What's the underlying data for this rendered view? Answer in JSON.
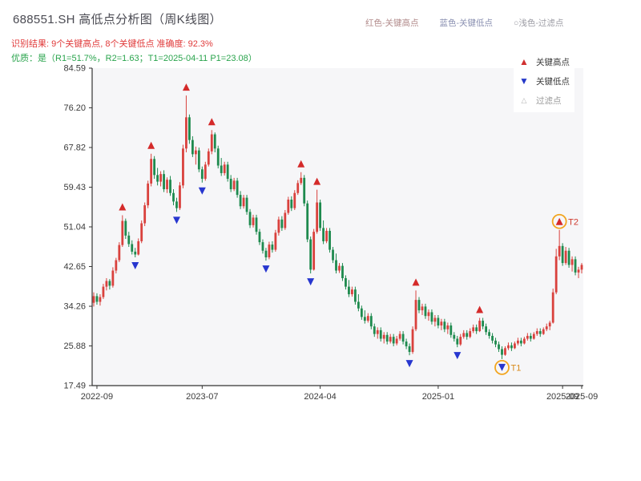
{
  "header": {
    "title": "688551.SH 高低点分析图（周K线图）",
    "legend_items": [
      {
        "label": "红色-关键高点",
        "color": "#b18a8a"
      },
      {
        "label": "蓝色-关键低点",
        "color": "#8a90b1"
      },
      {
        "label": "○浅色-过滤点",
        "color": "#9c9ca4"
      }
    ],
    "result_line": "识别结果: 9个关键高点, 8个关键低点  准确度: 92.3%",
    "quality_line": "优质：是（R1=51.7%，R2=1.63；T1=2025-04-11 P1=23.08）"
  },
  "chart_legend": {
    "items": [
      {
        "glyph": "▲",
        "color": "#d03030",
        "label": "关键高点",
        "muted": false
      },
      {
        "glyph": "▼",
        "color": "#2438c8",
        "label": "关键低点",
        "muted": false
      },
      {
        "glyph": "△",
        "color": "#b5b5b5",
        "label": "过滤点",
        "muted": true
      }
    ]
  },
  "chart_data": {
    "type": "candlestick",
    "title": "688551.SH 高低点分析图（周K线图）",
    "symbol": "688551.SH",
    "frequency": "weekly",
    "ylim": [
      17.49,
      84.59
    ],
    "y_ticks": [
      "84.59",
      "76.20",
      "67.82",
      "59.43",
      "51.04",
      "42.65",
      "34.26",
      "25.88",
      "17.49"
    ],
    "x_ticks": [
      {
        "i": 1,
        "label": "2022-09"
      },
      {
        "i": 34,
        "label": "2023-07"
      },
      {
        "i": 71,
        "label": "2024-04"
      },
      {
        "i": 108,
        "label": "2025-01"
      },
      {
        "i": 147,
        "label": "2025-09"
      },
      {
        "i": 153,
        "label": "2025-09"
      }
    ],
    "recognition": {
      "key_high_count": 9,
      "key_low_count": 8,
      "accuracy_pct": 92.3
    },
    "quality": {
      "is_quality": "是",
      "R1_pct": 51.7,
      "R2": 1.63,
      "T1_date": "2025-04-11",
      "P1": 23.08
    },
    "colors": {
      "up": "#d9413d",
      "down": "#1e8a4e",
      "key_high": "#d42a2a",
      "key_low": "#2736cf",
      "filter_circle": "#f2a51f",
      "axis": "#333333",
      "tick_label": "#3a3a3a",
      "plot_bg": "#f6f6f8"
    },
    "candles": [
      [
        35.0,
        37.2,
        34.2,
        36.4
      ],
      [
        36.4,
        37.0,
        34.6,
        35.2
      ],
      [
        35.2,
        36.8,
        34.4,
        36.2
      ],
      [
        36.2,
        39.0,
        35.8,
        38.4
      ],
      [
        38.4,
        40.2,
        37.6,
        39.6
      ],
      [
        39.6,
        40.0,
        37.8,
        38.6
      ],
      [
        38.6,
        42.5,
        38.2,
        41.8
      ],
      [
        41.8,
        44.5,
        41.2,
        44.0
      ],
      [
        44.0,
        47.8,
        43.6,
        47.2
      ],
      [
        47.2,
        53.5,
        46.8,
        52.3
      ],
      [
        52.3,
        52.8,
        48.5,
        49.2
      ],
      [
        49.2,
        50.0,
        46.8,
        47.4
      ],
      [
        47.4,
        48.2,
        45.2,
        45.8
      ],
      [
        45.8,
        46.6,
        44.6,
        45.2
      ],
      [
        45.2,
        48.6,
        45.0,
        48.0
      ],
      [
        48.0,
        52.4,
        47.6,
        51.8
      ],
      [
        51.8,
        56.2,
        51.2,
        55.6
      ],
      [
        55.6,
        60.8,
        55.0,
        60.2
      ],
      [
        60.2,
        66.5,
        59.6,
        65.4
      ],
      [
        65.4,
        66.0,
        61.2,
        62.0
      ],
      [
        62.0,
        63.5,
        59.8,
        60.6
      ],
      [
        60.6,
        62.8,
        59.6,
        62.2
      ],
      [
        62.2,
        63.0,
        58.4,
        59.0
      ],
      [
        59.0,
        61.5,
        58.2,
        61.0
      ],
      [
        61.0,
        61.8,
        57.6,
        58.2
      ],
      [
        58.2,
        59.0,
        55.6,
        56.4
      ],
      [
        56.4,
        57.2,
        54.2,
        55.0
      ],
      [
        55.0,
        60.5,
        54.6,
        59.8
      ],
      [
        59.8,
        68.4,
        59.2,
        67.6
      ],
      [
        67.6,
        78.8,
        66.8,
        74.2
      ],
      [
        74.2,
        74.8,
        68.6,
        69.4
      ],
      [
        69.4,
        70.2,
        65.8,
        66.4
      ],
      [
        66.4,
        68.0,
        64.2,
        67.2
      ],
      [
        67.2,
        67.8,
        62.6,
        63.2
      ],
      [
        63.2,
        63.8,
        60.4,
        61.2
      ],
      [
        61.2,
        64.8,
        60.8,
        64.2
      ],
      [
        64.2,
        67.6,
        63.8,
        67.0
      ],
      [
        67.0,
        71.5,
        66.4,
        70.6
      ],
      [
        70.6,
        71.0,
        66.8,
        67.6
      ],
      [
        67.6,
        68.2,
        63.4,
        64.0
      ],
      [
        64.0,
        65.6,
        61.8,
        62.4
      ],
      [
        62.4,
        64.8,
        61.9,
        64.2
      ],
      [
        64.2,
        64.8,
        60.6,
        61.2
      ],
      [
        61.2,
        62.0,
        58.4,
        59.0
      ],
      [
        59.0,
        61.4,
        58.6,
        60.8
      ],
      [
        60.8,
        61.4,
        57.2,
        57.8
      ],
      [
        57.8,
        58.6,
        54.8,
        55.4
      ],
      [
        55.4,
        57.8,
        54.9,
        57.2
      ],
      [
        57.2,
        57.8,
        53.6,
        54.2
      ],
      [
        54.2,
        54.8,
        50.8,
        51.4
      ],
      [
        51.4,
        53.6,
        50.9,
        53.0
      ],
      [
        53.0,
        53.6,
        49.4,
        50.0
      ],
      [
        50.0,
        50.6,
        47.2,
        47.8
      ],
      [
        47.8,
        48.4,
        45.4,
        46.0
      ],
      [
        46.0,
        46.6,
        43.9,
        44.6
      ],
      [
        44.6,
        47.9,
        44.2,
        47.3
      ],
      [
        47.3,
        48.0,
        45.6,
        46.2
      ],
      [
        46.2,
        50.4,
        45.8,
        49.8
      ],
      [
        49.8,
        53.2,
        49.2,
        52.6
      ],
      [
        52.6,
        53.3,
        50.2,
        50.8
      ],
      [
        50.8,
        54.6,
        50.4,
        54.0
      ],
      [
        54.0,
        57.4,
        53.6,
        56.8
      ],
      [
        56.8,
        57.5,
        54.4,
        55.0
      ],
      [
        55.0,
        58.8,
        54.6,
        58.2
      ],
      [
        58.2,
        60.9,
        57.8,
        60.3
      ],
      [
        60.3,
        62.6,
        59.9,
        61.4
      ],
      [
        61.4,
        62.0,
        55.4,
        56.0
      ],
      [
        56.0,
        56.6,
        47.8,
        48.4
      ],
      [
        48.4,
        49.0,
        41.2,
        42.0
      ],
      [
        42.0,
        50.6,
        41.8,
        50.0
      ],
      [
        50.0,
        58.9,
        49.6,
        56.2
      ],
      [
        56.2,
        56.8,
        50.2,
        50.8
      ],
      [
        50.8,
        52.4,
        47.4,
        48.0
      ],
      [
        48.0,
        50.8,
        47.6,
        50.2
      ],
      [
        50.2,
        50.8,
        45.6,
        46.2
      ],
      [
        46.2,
        46.8,
        43.4,
        44.0
      ],
      [
        44.0,
        45.4,
        41.2,
        41.8
      ],
      [
        41.8,
        43.4,
        41.3,
        42.8
      ],
      [
        42.8,
        43.4,
        39.6,
        40.2
      ],
      [
        40.2,
        40.8,
        37.8,
        38.4
      ],
      [
        38.4,
        39.8,
        36.2,
        36.8
      ],
      [
        36.8,
        38.4,
        36.3,
        37.8
      ],
      [
        37.8,
        38.4,
        34.6,
        35.2
      ],
      [
        35.2,
        36.8,
        33.2,
        33.8
      ],
      [
        33.8,
        34.4,
        31.4,
        32.0
      ],
      [
        32.0,
        33.4,
        30.6,
        31.2
      ],
      [
        31.2,
        32.8,
        30.8,
        32.2
      ],
      [
        32.2,
        32.8,
        29.4,
        30.0
      ],
      [
        30.0,
        30.6,
        27.8,
        28.4
      ],
      [
        28.4,
        29.8,
        27.4,
        29.2
      ],
      [
        29.2,
        29.8,
        26.8,
        27.4
      ],
      [
        27.4,
        28.8,
        26.4,
        28.2
      ],
      [
        28.2,
        28.8,
        26.2,
        26.8
      ],
      [
        26.8,
        28.4,
        26.4,
        27.8
      ],
      [
        27.8,
        28.4,
        25.8,
        26.4
      ],
      [
        26.4,
        28.0,
        26.0,
        27.4
      ],
      [
        27.4,
        29.0,
        27.0,
        28.4
      ],
      [
        28.4,
        29.0,
        26.2,
        26.8
      ],
      [
        26.8,
        27.4,
        25.2,
        25.8
      ],
      [
        25.8,
        26.4,
        23.9,
        24.6
      ],
      [
        24.6,
        30.0,
        24.2,
        29.4
      ],
      [
        29.4,
        37.6,
        29.0,
        35.6
      ],
      [
        35.6,
        36.2,
        32.8,
        33.4
      ],
      [
        33.4,
        34.8,
        32.4,
        34.2
      ],
      [
        34.2,
        34.8,
        31.6,
        32.2
      ],
      [
        32.2,
        33.6,
        31.2,
        33.0
      ],
      [
        33.0,
        33.6,
        30.4,
        31.0
      ],
      [
        31.0,
        32.4,
        30.0,
        31.8
      ],
      [
        31.8,
        32.4,
        29.6,
        30.2
      ],
      [
        30.2,
        31.6,
        29.2,
        31.0
      ],
      [
        31.0,
        31.6,
        28.8,
        29.4
      ],
      [
        29.4,
        30.8,
        28.4,
        30.2
      ],
      [
        30.2,
        30.8,
        27.6,
        28.2
      ],
      [
        28.2,
        28.8,
        26.8,
        27.4
      ],
      [
        27.4,
        28.0,
        25.6,
        26.2
      ],
      [
        26.2,
        28.4,
        25.9,
        27.8
      ],
      [
        27.8,
        29.2,
        27.4,
        28.6
      ],
      [
        28.6,
        29.2,
        27.2,
        27.8
      ],
      [
        27.8,
        29.6,
        27.5,
        29.0
      ],
      [
        29.0,
        30.4,
        28.6,
        29.8
      ],
      [
        29.8,
        30.4,
        28.4,
        29.0
      ],
      [
        29.0,
        31.8,
        28.8,
        31.2
      ],
      [
        31.2,
        31.8,
        29.4,
        30.0
      ],
      [
        30.0,
        30.6,
        28.2,
        28.8
      ],
      [
        28.8,
        29.4,
        27.4,
        28.0
      ],
      [
        28.0,
        28.6,
        26.4,
        27.0
      ],
      [
        27.0,
        27.6,
        25.6,
        26.2
      ],
      [
        26.2,
        26.8,
        24.6,
        25.2
      ],
      [
        25.2,
        25.8,
        23.1,
        24.0
      ],
      [
        24.0,
        25.8,
        23.8,
        25.4
      ],
      [
        25.4,
        26.6,
        25.0,
        26.0
      ],
      [
        26.0,
        26.6,
        24.8,
        25.4
      ],
      [
        25.4,
        26.8,
        25.2,
        26.4
      ],
      [
        26.4,
        27.6,
        26.0,
        27.0
      ],
      [
        27.0,
        27.6,
        25.8,
        26.4
      ],
      [
        26.4,
        27.8,
        26.2,
        27.4
      ],
      [
        27.4,
        28.6,
        27.0,
        28.0
      ],
      [
        28.0,
        28.6,
        26.8,
        27.4
      ],
      [
        27.4,
        28.8,
        27.2,
        28.4
      ],
      [
        28.4,
        29.6,
        28.0,
        29.0
      ],
      [
        29.0,
        29.6,
        27.8,
        28.4
      ],
      [
        28.4,
        29.8,
        28.2,
        29.4
      ],
      [
        29.4,
        30.6,
        29.0,
        30.0
      ],
      [
        30.0,
        31.2,
        29.2,
        30.8
      ],
      [
        30.8,
        38.0,
        30.6,
        37.2
      ],
      [
        37.2,
        46.4,
        36.8,
        44.8
      ],
      [
        44.8,
        50.4,
        44.0,
        47.0
      ],
      [
        47.0,
        47.6,
        42.8,
        43.4
      ],
      [
        43.4,
        46.8,
        43.0,
        46.0
      ],
      [
        46.0,
        46.6,
        42.4,
        43.0
      ],
      [
        43.0,
        44.8,
        41.6,
        44.2
      ],
      [
        44.2,
        44.8,
        40.8,
        41.4
      ],
      [
        41.4,
        42.6,
        40.2,
        42.0
      ],
      [
        42.0,
        43.4,
        41.2,
        43.0
      ]
    ],
    "key_highs": [
      {
        "i": 9,
        "price": 53.5
      },
      {
        "i": 18,
        "price": 66.5
      },
      {
        "i": 29,
        "price": 78.8
      },
      {
        "i": 37,
        "price": 71.5
      },
      {
        "i": 65,
        "price": 62.6
      },
      {
        "i": 70,
        "price": 58.9
      },
      {
        "i": 101,
        "price": 37.6
      },
      {
        "i": 121,
        "price": 31.8
      },
      {
        "i": 146,
        "price": 50.4
      }
    ],
    "key_lows": [
      {
        "i": 13,
        "price": 44.6
      },
      {
        "i": 26,
        "price": 54.2
      },
      {
        "i": 34,
        "price": 60.4
      },
      {
        "i": 54,
        "price": 43.9
      },
      {
        "i": 68,
        "price": 41.2
      },
      {
        "i": 99,
        "price": 23.9
      },
      {
        "i": 114,
        "price": 25.6
      },
      {
        "i": 128,
        "price": 23.08
      }
    ],
    "t_points": [
      {
        "label": "T1",
        "i": 128,
        "price": 23.08,
        "side": "low",
        "label_color": "#d98b1d"
      },
      {
        "label": "T2",
        "i": 146,
        "price": 50.4,
        "side": "high",
        "label_color": "#cf3a2e"
      }
    ]
  }
}
